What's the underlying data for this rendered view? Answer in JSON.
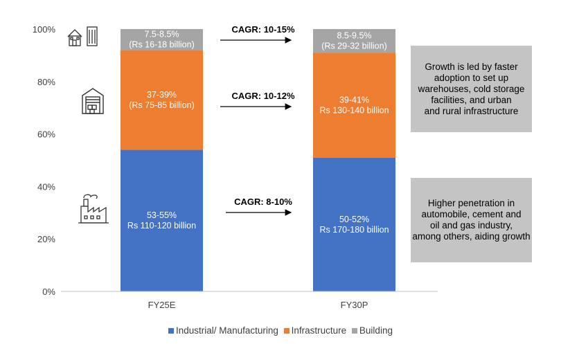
{
  "chart_data": {
    "type": "bar",
    "stacked": true,
    "categories": [
      "FY25E",
      "FY30P"
    ],
    "series": [
      {
        "name": "Industrial/ Manufacturing",
        "color": "#4472C4",
        "values": [
          54,
          51
        ],
        "labels": [
          [
            "53-55%",
            "Rs 110-120  billion"
          ],
          [
            "50-52%",
            "Rs 170-180  billion"
          ]
        ]
      },
      {
        "name": "Infrastructure",
        "color": "#ED7D31",
        "values": [
          38,
          40
        ],
        "labels": [
          [
            "37-39%",
            "(Rs 75-85 billion)"
          ],
          [
            "39-41%",
            "Rs 130-140  billion"
          ]
        ]
      },
      {
        "name": "Building",
        "color": "#A5A5A5",
        "values": [
          8,
          9
        ],
        "labels": [
          [
            "7.5-8.5%",
            "(Rs 16-18 billion)"
          ],
          [
            "8.5-9.5%",
            "(Rs 29-32 billion)"
          ]
        ]
      }
    ],
    "ylim": [
      0,
      100
    ],
    "yticks": [
      "0%",
      "20%",
      "40%",
      "60%",
      "80%",
      "100%"
    ],
    "ytick_values": [
      0,
      20,
      40,
      60,
      80,
      100
    ],
    "grid": false,
    "legend_position": "bottom",
    "annotations": [
      {
        "series": "Building",
        "text": "CAGR: 10-15%"
      },
      {
        "series": "Infrastructure",
        "text": "CAGR: 10-12%"
      },
      {
        "series": "Industrial/ Manufacturing",
        "text": "CAGR: 8-10%"
      }
    ]
  },
  "notes": {
    "top": [
      "Growth is led by faster",
      "adoption to set up",
      "warehouses, cold storage",
      "facilities, and urban",
      "and rural infrastructure"
    ],
    "bottom": [
      "Higher penetration  in",
      "automobile,  cement and",
      "oil and gas industry,",
      "among others, aiding growth"
    ]
  },
  "icons": [
    "buildings-icon",
    "warehouse-icon",
    "factory-icon"
  ]
}
